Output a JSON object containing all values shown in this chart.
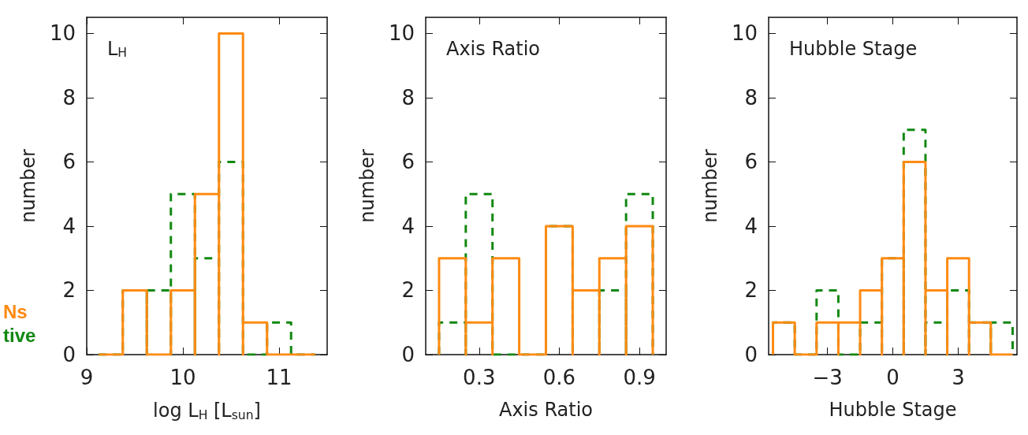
{
  "chart_data": [
    {
      "type": "histogram",
      "xlabel": "log L$_{H}$ [L$_{sun}$]",
      "ylabel": "number",
      "annotations": [
        "L$_{H}$"
      ],
      "xlim": [
        9,
        11.5
      ],
      "xticks": [
        9,
        10,
        11
      ],
      "ylim": [
        0,
        10.5
      ],
      "yticks": [
        0,
        2,
        4,
        6,
        8,
        10
      ],
      "grid": false,
      "legend": "left",
      "bins": [
        9.125,
        9.375,
        9.625,
        9.875,
        10.125,
        10.375,
        10.625,
        10.875,
        11.125,
        11.375
      ],
      "series": [
        {
          "name": "Ns",
          "color": "#ff8a12",
          "line_style": "solid",
          "values": [
            0,
            2,
            0,
            2,
            5,
            10,
            1,
            0,
            0
          ]
        },
        {
          "name": "tive",
          "color": "#118811",
          "line_style": "dashed",
          "values": [
            0,
            2,
            2,
            5,
            3,
            6,
            0,
            1,
            0
          ]
        }
      ]
    },
    {
      "type": "histogram",
      "xlabel": "Axis Ratio",
      "ylabel": "number",
      "annotations": [
        "Axis Ratio"
      ],
      "xlim": [
        0.1,
        1.0
      ],
      "xticks": [
        0.3,
        0.6,
        0.9
      ],
      "ylim": [
        0,
        10.5
      ],
      "yticks": [
        0,
        2,
        4,
        6,
        8,
        10
      ],
      "grid": false,
      "bins": [
        0.15,
        0.25,
        0.35,
        0.45,
        0.55,
        0.65,
        0.75,
        0.85,
        0.95
      ],
      "series": [
        {
          "color": "#ff8a12",
          "line_style": "solid",
          "values": [
            3,
            1,
            3,
            0,
            4,
            2,
            3,
            4
          ]
        },
        {
          "color": "#118811",
          "line_style": "dashed",
          "values": [
            1,
            5,
            0,
            0,
            4,
            2,
            2,
            5
          ]
        }
      ]
    },
    {
      "type": "histogram",
      "xlabel": "Hubble Stage",
      "ylabel": "number",
      "annotations": [
        "Hubble Stage"
      ],
      "xlim": [
        -5.7,
        5.7
      ],
      "xticks": [
        {
          "value": -3,
          "label": "−3"
        },
        0,
        3
      ],
      "ylim": [
        0,
        10.5
      ],
      "yticks": [
        0,
        2,
        4,
        6,
        8,
        10
      ],
      "grid": false,
      "bins": [
        -5.5,
        -4.5,
        -3.5,
        -2.5,
        -1.5,
        -0.5,
        0.5,
        1.5,
        2.5,
        3.5,
        4.5,
        5.5
      ],
      "series": [
        {
          "color": "#ff8a12",
          "line_style": "solid",
          "values": [
            1,
            0,
            1,
            1,
            2,
            3,
            6,
            2,
            3,
            1,
            0
          ]
        },
        {
          "color": "#118811",
          "line_style": "dashed",
          "values": [
            1,
            0,
            2,
            0,
            1,
            3,
            7,
            1,
            2,
            1,
            1
          ]
        }
      ]
    }
  ]
}
